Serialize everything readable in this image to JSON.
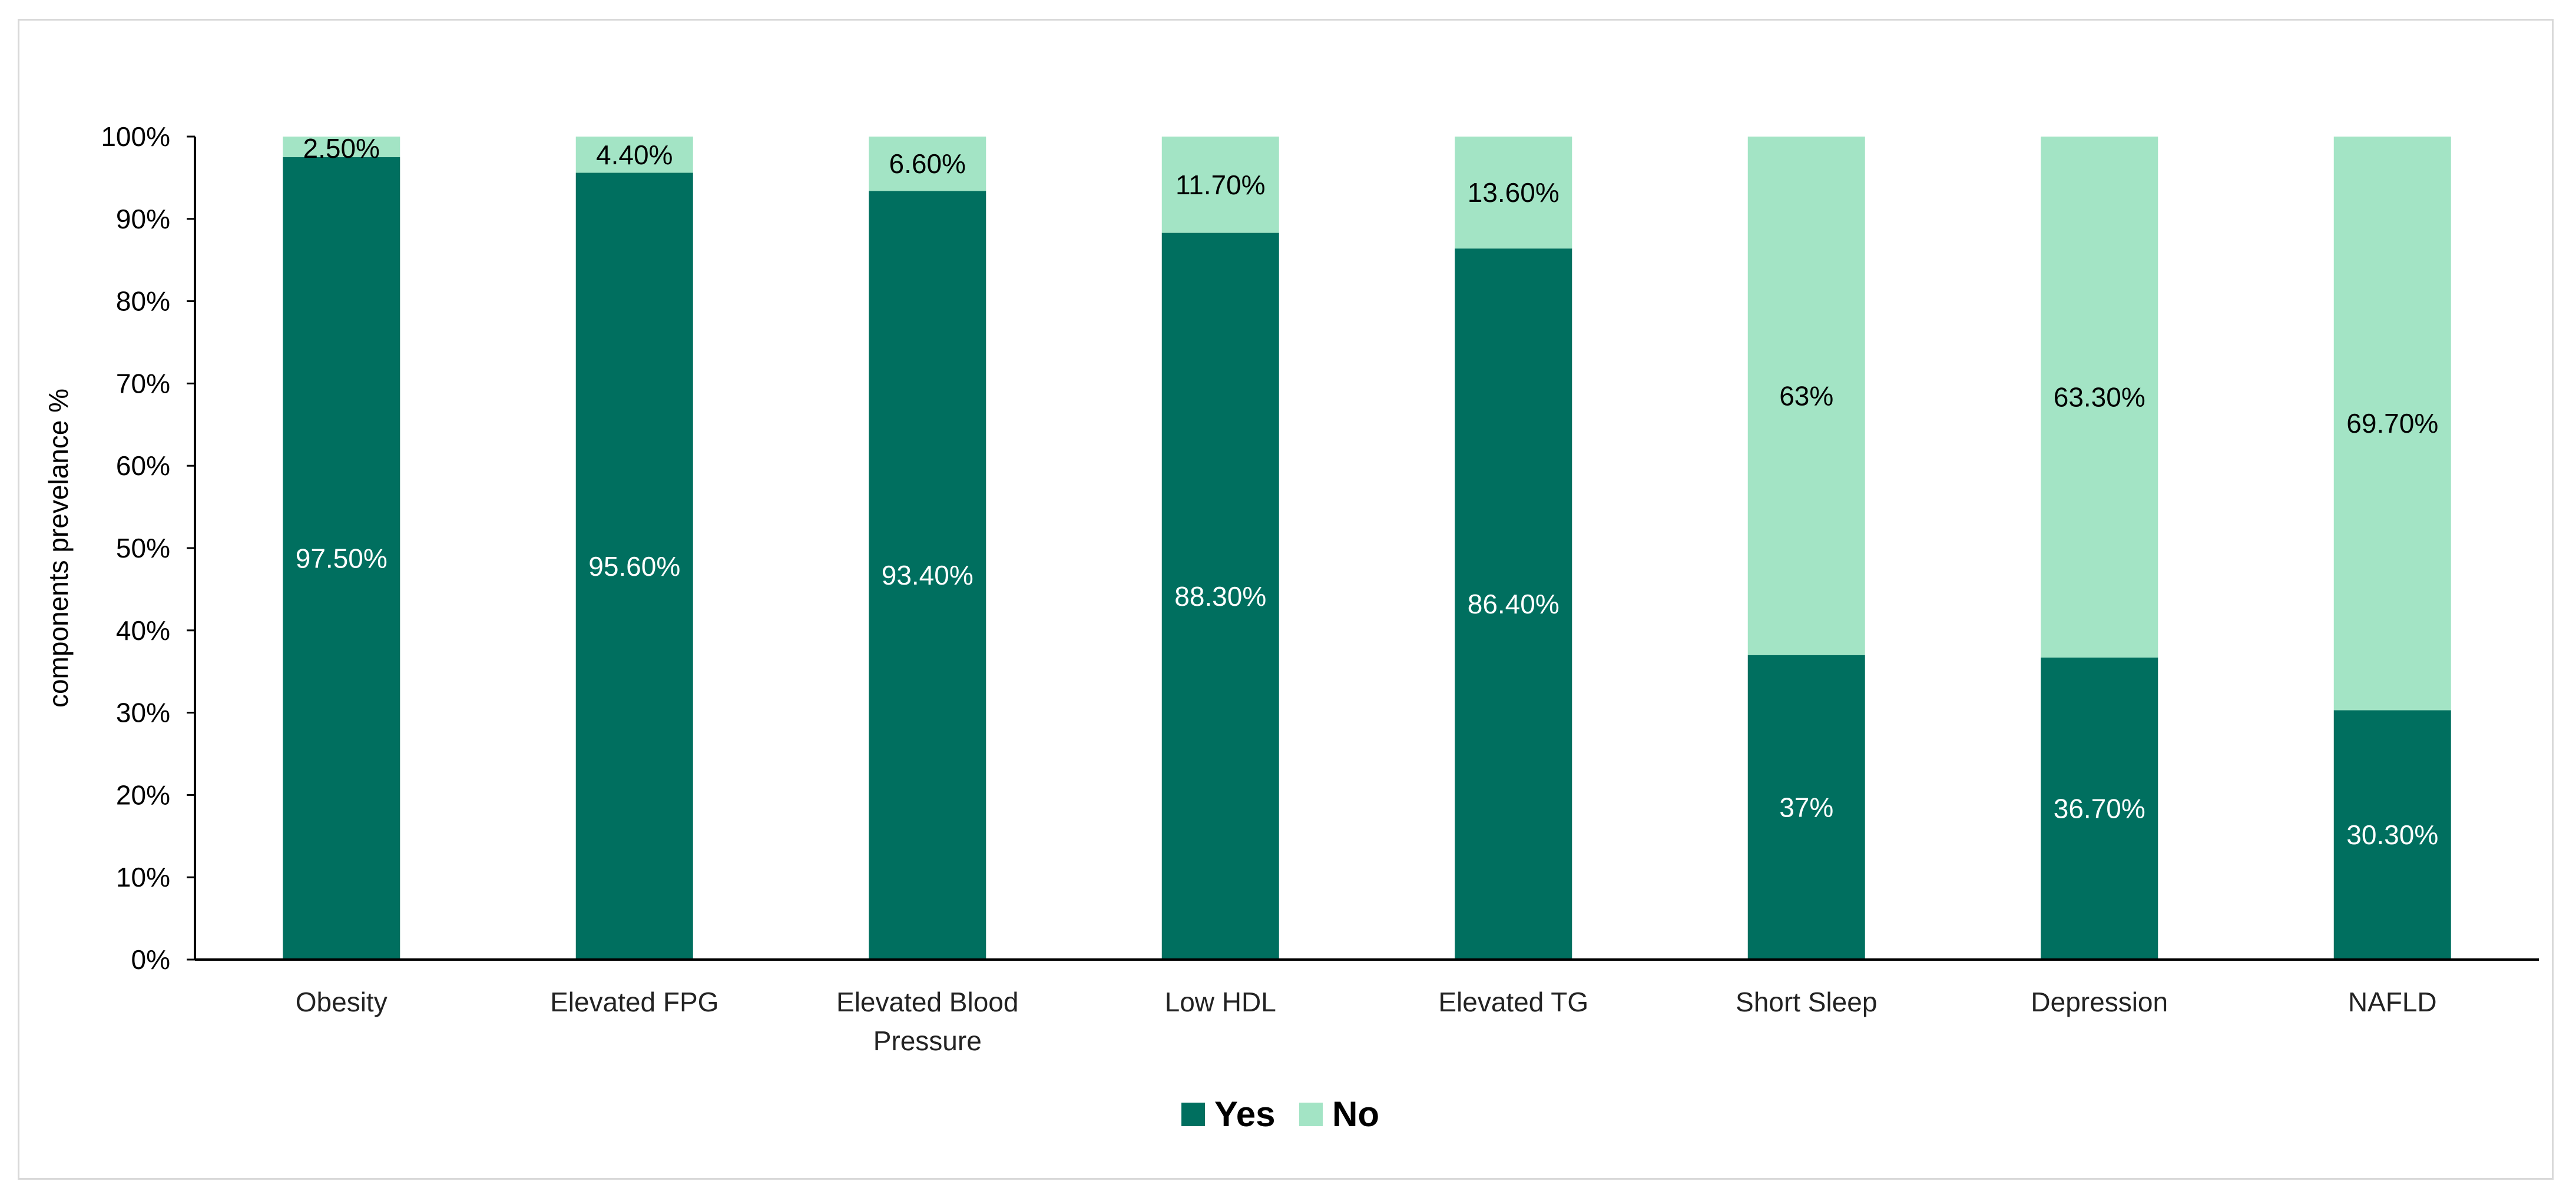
{
  "chart_data": {
    "type": "bar",
    "stacked": true,
    "percent_stacked": true,
    "categories": [
      [
        "Obesity"
      ],
      [
        "Elevated FPG"
      ],
      [
        "Elevated Blood",
        "Pressure"
      ],
      [
        "Low HDL"
      ],
      [
        "Elevated TG"
      ],
      [
        "Short Sleep"
      ],
      [
        "Depression"
      ],
      [
        "NAFLD"
      ]
    ],
    "series": [
      {
        "name": "Yes",
        "color": "#006f5f",
        "label_color": "#ffffff",
        "values": [
          97.5,
          95.6,
          93.4,
          88.3,
          86.4,
          37,
          36.7,
          30.3
        ],
        "labels": [
          "97.50%",
          "95.60%",
          "93.40%",
          "88.30%",
          "86.40%",
          "37%",
          "36.70%",
          "30.30%"
        ]
      },
      {
        "name": "No",
        "color": "#a3e4c5",
        "label_color": "#000000",
        "values": [
          2.5,
          4.4,
          6.6,
          11.7,
          13.6,
          63,
          63.3,
          69.7
        ],
        "labels": [
          "2.50%",
          "4.40%",
          "6.60%",
          "11.70%",
          "13.60%",
          "63%",
          "63.30%",
          "69.70%"
        ]
      }
    ],
    "ylabel": "components  prevelance %",
    "xlabel": "",
    "ylim": [
      0,
      100
    ],
    "yticks": [
      "0%",
      "10%",
      "20%",
      "30%",
      "40%",
      "50%",
      "60%",
      "70%",
      "80%",
      "90%",
      "100%"
    ],
    "grid": false,
    "legend": {
      "position": "bottom-center",
      "entries": [
        "Yes",
        "No"
      ]
    }
  }
}
